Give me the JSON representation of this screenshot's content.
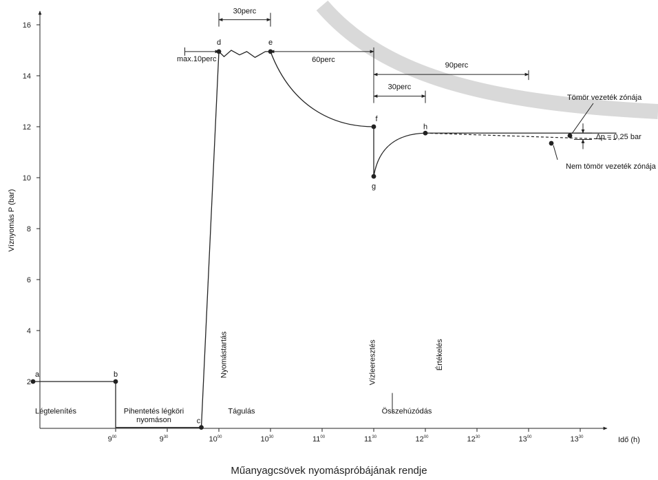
{
  "chart_data": {
    "type": "line",
    "caption": "Műanyagcsövek nyomáspróbájának rendje",
    "ylabel": "Víznyomás P (bar)",
    "xlabel": "Idő (h)",
    "ylim": [
      0,
      16.5
    ],
    "yticks": [
      2,
      4,
      6,
      8,
      10,
      12,
      14,
      16
    ],
    "xticks": [
      {
        "h": "9",
        "m": "00",
        "t": 9.0
      },
      {
        "h": "9",
        "m": "30",
        "t": 9.5
      },
      {
        "h": "10",
        "m": "00",
        "t": 10.0
      },
      {
        "h": "10",
        "m": "30",
        "t": 10.5
      },
      {
        "h": "11",
        "m": "00",
        "t": 11.0
      },
      {
        "h": "11",
        "m": "30",
        "t": 11.5
      },
      {
        "h": "12",
        "m": "00",
        "t": 12.0
      },
      {
        "h": "12",
        "m": "30",
        "t": 12.5
      },
      {
        "h": "13",
        "m": "00",
        "t": 13.0
      },
      {
        "h": "13",
        "m": "30",
        "t": 13.5
      }
    ],
    "points": [
      {
        "label": "a",
        "t": 8.2,
        "p": 2.0
      },
      {
        "label": "b",
        "t": 9.0,
        "p": 2.0
      },
      {
        "label": "c",
        "t": 9.83,
        "p": 0.2
      },
      {
        "label": "d",
        "t": 10.0,
        "p": 14.95
      },
      {
        "label": "e",
        "t": 10.5,
        "p": 14.95
      },
      {
        "label": "f",
        "t": 11.5,
        "p": 12.0
      },
      {
        "label": "g",
        "t": 11.5,
        "p": 10.05
      },
      {
        "label": "h",
        "t": 12.0,
        "p": 11.75
      }
    ],
    "series": [
      {
        "name": "Tömör vezeték zónája",
        "style": "solid",
        "end": {
          "t": 13.85,
          "p": 11.75
        },
        "marker": {
          "t": 13.4,
          "p": 11.65
        }
      },
      {
        "name": "Nem tömör vezeték zónája",
        "style": "dashed",
        "end": {
          "t": 13.85,
          "p": 11.5
        },
        "marker": {
          "t": 13.22,
          "p": 11.35
        }
      }
    ],
    "intervals": [
      {
        "label": "30perc",
        "t0": 10.0,
        "t1": 10.5,
        "p": 16.2
      },
      {
        "label": "max.10perc",
        "t0": 9.83,
        "t1": 10.0,
        "p": 14.95
      },
      {
        "label": "60perc",
        "t0": 10.5,
        "t1": 11.5,
        "p": 14.95
      },
      {
        "label": "90perc",
        "t0": 11.5,
        "t1": 13.0,
        "p": 14.05
      },
      {
        "label": "30perc",
        "t0": 11.5,
        "t1": 12.0,
        "p": 13.2
      }
    ],
    "delta_p": "∆p = 0,25 bar",
    "phases": [
      {
        "label": "Légtelenítés",
        "t": 8.42,
        "p": 0.75
      },
      {
        "label": "Pihentetés légköri",
        "t": 9.37,
        "p": 0.75
      },
      {
        "label": "nyomáson",
        "t": 9.37,
        "p": 0.4
      },
      {
        "label": "Tágulás",
        "t": 10.22,
        "p": 0.75
      },
      {
        "label": "Összehúzódás",
        "t": 11.82,
        "p": 0.75
      }
    ],
    "vertical_labels": [
      {
        "label": "Nyomástartás",
        "t": 10.07,
        "p": 3.05
      },
      {
        "label": "Vízleeresztés",
        "t": 11.51,
        "p": 2.75
      },
      {
        "label": "Értékelés",
        "t": 12.16,
        "p": 3.05
      }
    ],
    "colors": {
      "line": "#222222",
      "band": "#d9d9d9"
    }
  }
}
